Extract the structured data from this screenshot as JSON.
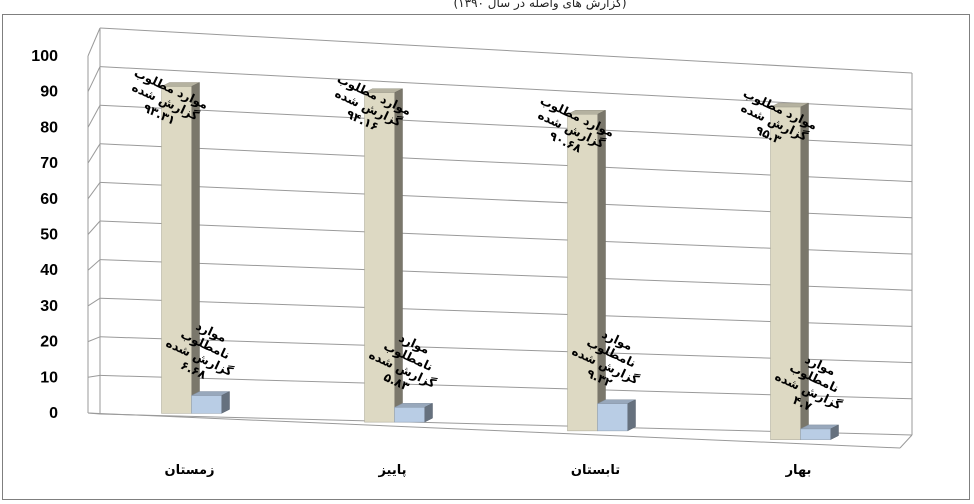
{
  "caption": "(گزارش های واصله در سال ۱۳۹۰)",
  "chart_data": {
    "type": "bar",
    "title": "",
    "xlabel": "",
    "ylabel": "",
    "ylim": [
      0,
      100
    ],
    "y_ticks": [
      "0",
      "10",
      "20",
      "30",
      "40",
      "50",
      "60",
      "70",
      "80",
      "90",
      "100"
    ],
    "grid": true,
    "legend": "none",
    "categories": [
      "زمستان",
      "پاییز",
      "تابستان",
      "بهار"
    ],
    "series": [
      {
        "name": "موارد مطلوب گزارش شده",
        "color": "#ddd9c3",
        "values": [
          93.31,
          94.16,
          90.68,
          95.3
        ],
        "labels": [
          [
            "موارد مطلوب",
            "گزارش شده",
            "۹۳.۳۱"
          ],
          [
            "موارد مطلوب",
            "گزارش شده",
            "۹۴.۱۶"
          ],
          [
            "موارد مطلوب",
            "گزارش شده",
            "۹۰.۶۸"
          ],
          [
            "موارد مطلوب",
            "گزارش شده",
            "۹۵.۳"
          ]
        ]
      },
      {
        "name": "موارد نامطلوب گزارش شده",
        "color": "#b9cde5",
        "values": [
          6.68,
          5.83,
          9.32,
          4.7
        ],
        "labels": [
          [
            "موارد",
            "نامطلوب",
            "گزارش شده",
            "۶.۶۸"
          ],
          [
            "موارد",
            "نامطلوب",
            "گزارش شده",
            "۵.۸۳"
          ],
          [
            "موارد",
            "نامطلوب",
            "گزارش شده",
            "۹.۳۲"
          ],
          [
            "موارد",
            "نامطلوب",
            "گزارش شده",
            "۴.۷"
          ]
        ]
      }
    ]
  }
}
